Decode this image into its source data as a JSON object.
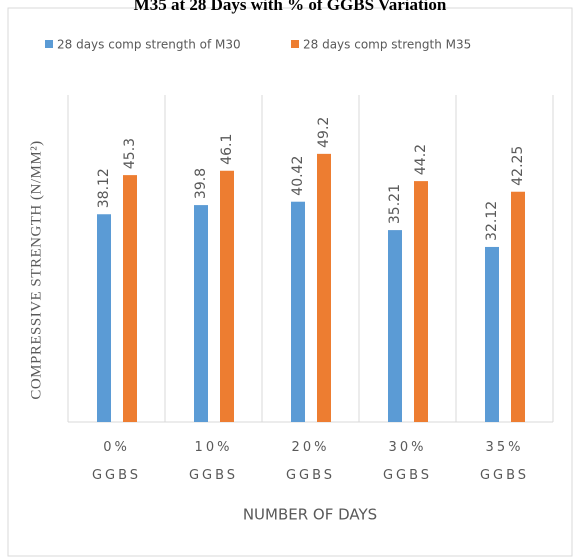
{
  "chart_data": {
    "type": "bar",
    "title": "M35 at 28 Days with % of GGBS Variation",
    "categories": [
      "0% GGBS",
      "10% GGBS",
      "20% GGBS",
      "30% GGBS",
      "35% GGBS"
    ],
    "series": [
      {
        "name": "28 days comp strength of M30",
        "color": "#5b9bd5",
        "values": [
          38.12,
          39.8,
          40.42,
          35.21,
          32.12
        ]
      },
      {
        "name": "28 days comp strength M35",
        "color": "#ed7d31",
        "values": [
          45.3,
          46.1,
          49.2,
          44.2,
          42.25
        ]
      }
    ],
    "ylim": [
      0,
      60
    ],
    "y_label": "COMPRESSIVE STRENGTH (N/MM²)",
    "x_label": "NUMBER OF DAYS"
  }
}
